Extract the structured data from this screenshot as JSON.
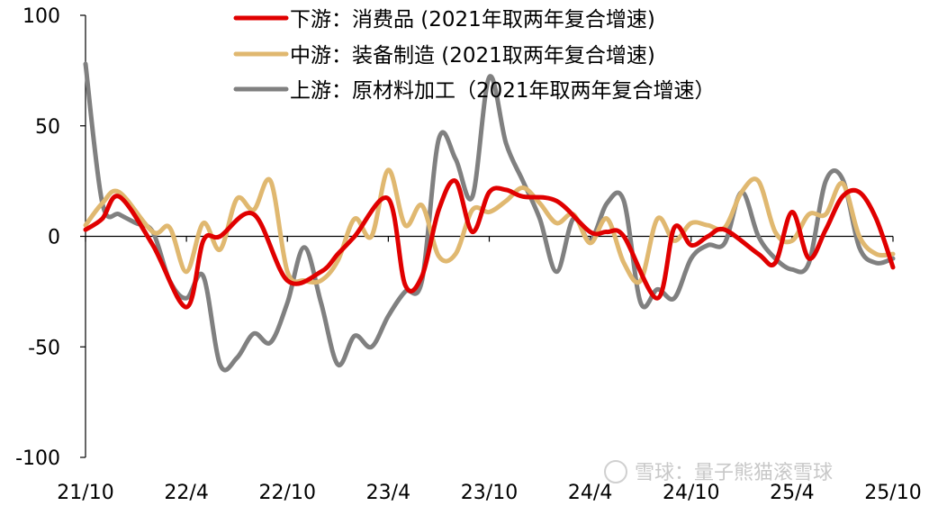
{
  "chart_data": {
    "type": "line",
    "title": "",
    "xlabel": "",
    "ylabel": "",
    "ylim": [
      -100,
      100
    ],
    "yticks": [
      100,
      50,
      0,
      -50,
      -100
    ],
    "x_tick_labels": [
      "21/10",
      "22/4",
      "22/10",
      "23/4",
      "23/10",
      "24/4",
      "24/10",
      "25/4",
      "25/10"
    ],
    "x_tick_months": [
      0,
      6,
      12,
      18,
      24,
      30,
      36,
      42,
      48
    ],
    "x_range_months": [
      0,
      48
    ],
    "grid": false,
    "legend": "top-right",
    "series": [
      {
        "name": "下游：消费品 (2021年取两年复合增速)",
        "color": "#e00000",
        "x_months": [
          0,
          1,
          2,
          4,
          6,
          7,
          8,
          10,
          12,
          14,
          15,
          16,
          18,
          19,
          20,
          21,
          22,
          23,
          24,
          25,
          26,
          28,
          30,
          31,
          32,
          34,
          35,
          36,
          37,
          38,
          40,
          41,
          42,
          43,
          44,
          45,
          46,
          47,
          48
        ],
        "values": [
          3,
          8,
          18,
          -4,
          -32,
          -2,
          0,
          10,
          -20,
          -16,
          -8,
          0,
          17,
          -22,
          -18,
          12,
          25,
          2,
          20,
          21,
          18,
          16,
          2,
          2,
          0,
          -28,
          4,
          -4,
          0,
          3,
          -8,
          -12,
          11,
          -10,
          3,
          18,
          20,
          8,
          -14
        ]
      },
      {
        "name": "中游：装备制造 (2021取两年复合增速)",
        "color": "#e0b870",
        "x_months": [
          0,
          1,
          2,
          4,
          5,
          6,
          7,
          8,
          9,
          10,
          11,
          12,
          13,
          14,
          15,
          16,
          17,
          18,
          19,
          20,
          21,
          22,
          23,
          24,
          25,
          26,
          27,
          28,
          29,
          30,
          31,
          32,
          33,
          34,
          35,
          36,
          37,
          38,
          39,
          40,
          41,
          42,
          43,
          44,
          45,
          46,
          47,
          48
        ],
        "values": [
          5,
          15,
          20,
          2,
          4,
          -16,
          6,
          -6,
          17,
          12,
          25,
          -16,
          -20,
          -20,
          -11,
          8,
          0,
          30,
          5,
          14,
          -9,
          -8,
          12,
          11,
          16,
          22,
          15,
          6,
          10,
          -3,
          8,
          -12,
          -20,
          8,
          -2,
          6,
          5,
          4,
          20,
          25,
          2,
          -2,
          10,
          10,
          24,
          0,
          -8,
          -8
        ]
      },
      {
        "name": "上游：原材料加工（2021年取两年复合增速）",
        "color": "#808080",
        "x_months": [
          0,
          1,
          2,
          3,
          4,
          5,
          6,
          7,
          8,
          9,
          10,
          11,
          12,
          13,
          14,
          15,
          16,
          17,
          18,
          19,
          20,
          21,
          22,
          23,
          24,
          25,
          26,
          27,
          28,
          29,
          30,
          31,
          32,
          33,
          34,
          35,
          36,
          37,
          38,
          39,
          40,
          41,
          42,
          43,
          44,
          45,
          46,
          47,
          48
        ],
        "values": [
          78,
          15,
          10,
          6,
          2,
          -20,
          -28,
          -18,
          -58,
          -55,
          -44,
          -48,
          -30,
          -5,
          -30,
          -58,
          -45,
          -50,
          -36,
          -25,
          -20,
          44,
          35,
          18,
          72,
          42,
          25,
          8,
          -16,
          8,
          -2,
          15,
          16,
          -30,
          -24,
          -28,
          -10,
          -4,
          -3,
          20,
          0,
          -10,
          -15,
          -12,
          25,
          26,
          -5,
          -12,
          -10
        ]
      }
    ]
  },
  "watermark": "雪球：量子熊猫滚雪球"
}
